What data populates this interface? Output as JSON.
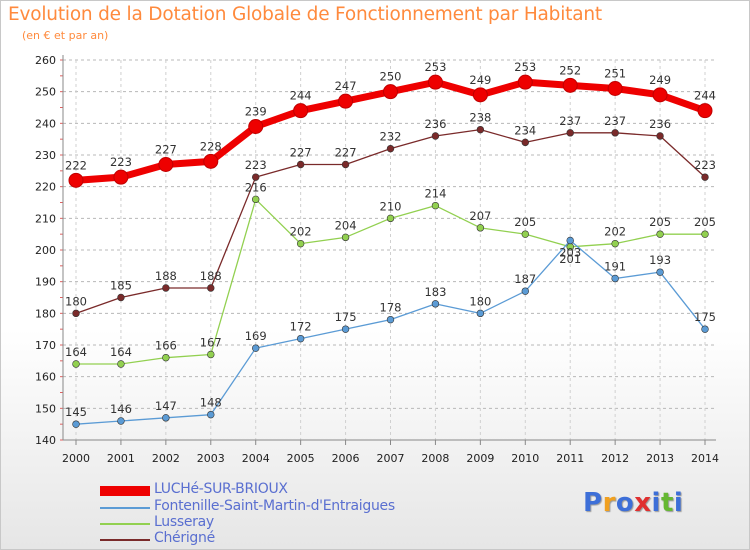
{
  "header": {
    "title": "Evolution de la Dotation Globale de Fonctionnement par Habitant",
    "subtitle": "(en € et par an)"
  },
  "logo": {
    "text": "Proxiti",
    "colors": [
      "#3d6fd8",
      "#f0a020",
      "#3d6fd8",
      "#e03030",
      "#3d6fd8",
      "#66b832",
      "#3d6fd8"
    ]
  },
  "chart_data": {
    "type": "line",
    "title": "Evolution de la Dotation Globale de Fonctionnement par Habitant",
    "subtitle": "(en € et par an)",
    "xlabel": "",
    "ylabel": "",
    "ylim": [
      140,
      260
    ],
    "yticks": [
      140,
      150,
      160,
      170,
      180,
      190,
      200,
      210,
      220,
      230,
      240,
      250,
      260
    ],
    "grid": true,
    "legend_position": "bottom",
    "x": [
      "2000",
      "2001",
      "2002",
      "2003",
      "2004",
      "2005",
      "2006",
      "2007",
      "2008",
      "2009",
      "2010",
      "2011",
      "2012",
      "2013",
      "2014"
    ],
    "series": [
      {
        "name": "LUCHé-SUR-BRIOUX",
        "color": "#ee0000",
        "values": [
          222,
          223,
          227,
          228,
          239,
          244,
          247,
          250,
          253,
          249,
          253,
          252,
          251,
          249,
          244
        ]
      },
      {
        "name": "Fontenille-Saint-Martin-d'Entraigues",
        "color": "#5b9bd5",
        "values": [
          145,
          146,
          147,
          148,
          169,
          172,
          175,
          178,
          183,
          180,
          187,
          203,
          191,
          193,
          175
        ]
      },
      {
        "name": "Lusseray",
        "color": "#92d050",
        "values": [
          164,
          164,
          166,
          167,
          216,
          202,
          204,
          210,
          214,
          207,
          205,
          201,
          202,
          205,
          205
        ]
      },
      {
        "name": "Chérigné",
        "color": "#7a2a2a",
        "values": [
          180,
          185,
          188,
          188,
          223,
          227,
          227,
          232,
          236,
          238,
          234,
          237,
          237,
          236,
          223
        ]
      }
    ]
  }
}
